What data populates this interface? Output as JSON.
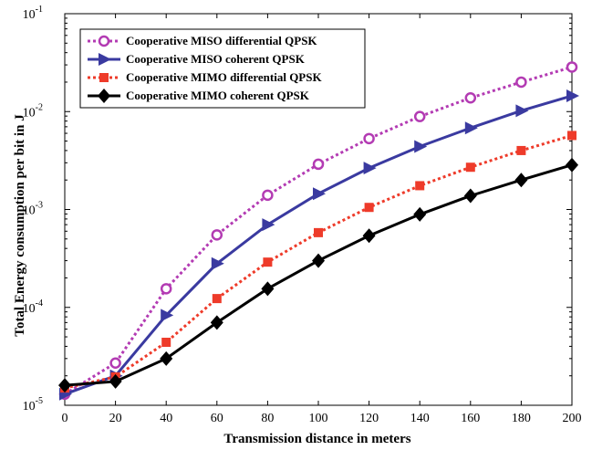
{
  "chart_data": {
    "type": "line",
    "title": "",
    "xlabel": "Transmission distance in meters",
    "ylabel": "Total Energy consumption per bit in J",
    "xlim": [
      0,
      200
    ],
    "ylim": [
      1e-05,
      0.1
    ],
    "yscale": "log",
    "grid": false,
    "legend_position": "top-left",
    "x": [
      0,
      20,
      40,
      60,
      80,
      100,
      120,
      140,
      160,
      180,
      200
    ],
    "x_ticks": [
      "0",
      "20",
      "40",
      "60",
      "80",
      "100",
      "120",
      "140",
      "160",
      "180",
      "200"
    ],
    "y_ticks": [
      {
        "base": "10",
        "exp": "-5"
      },
      {
        "base": "10",
        "exp": "-4"
      },
      {
        "base": "10",
        "exp": "-3"
      },
      {
        "base": "10",
        "exp": "-2"
      },
      {
        "base": "10",
        "exp": "-1"
      }
    ],
    "series": [
      {
        "name": "Cooperative MISO differential QPSK",
        "color": "#b33bb3",
        "line": "dotted",
        "marker": "circle-open",
        "values": [
          1.3e-05,
          2.7e-05,
          0.000155,
          0.00055,
          0.0014,
          0.0029,
          0.0053,
          0.0089,
          0.0138,
          0.02,
          0.0285
        ]
      },
      {
        "name": "Cooperative MISO coherent QPSK",
        "color": "#3a3aa0",
        "line": "solid",
        "marker": "triangle-right",
        "values": [
          1.3e-05,
          2e-05,
          8.3e-05,
          0.00028,
          0.0007,
          0.00145,
          0.00265,
          0.0044,
          0.0068,
          0.0102,
          0.0145
        ]
      },
      {
        "name": "Cooperative MIMO differential QPSK",
        "color": "#ee3b2a",
        "line": "dotted",
        "marker": "square",
        "values": [
          1.5e-05,
          1.95e-05,
          4.4e-05,
          0.000123,
          0.00029,
          0.00058,
          0.00105,
          0.00175,
          0.0027,
          0.004,
          0.0057
        ]
      },
      {
        "name": "Cooperative MIMO coherent QPSK",
        "color": "#000000",
        "line": "solid",
        "marker": "diamond",
        "values": [
          1.6e-05,
          1.75e-05,
          3e-05,
          7e-05,
          0.000155,
          0.0003,
          0.00054,
          0.00089,
          0.00138,
          0.002,
          0.00285
        ]
      }
    ]
  }
}
